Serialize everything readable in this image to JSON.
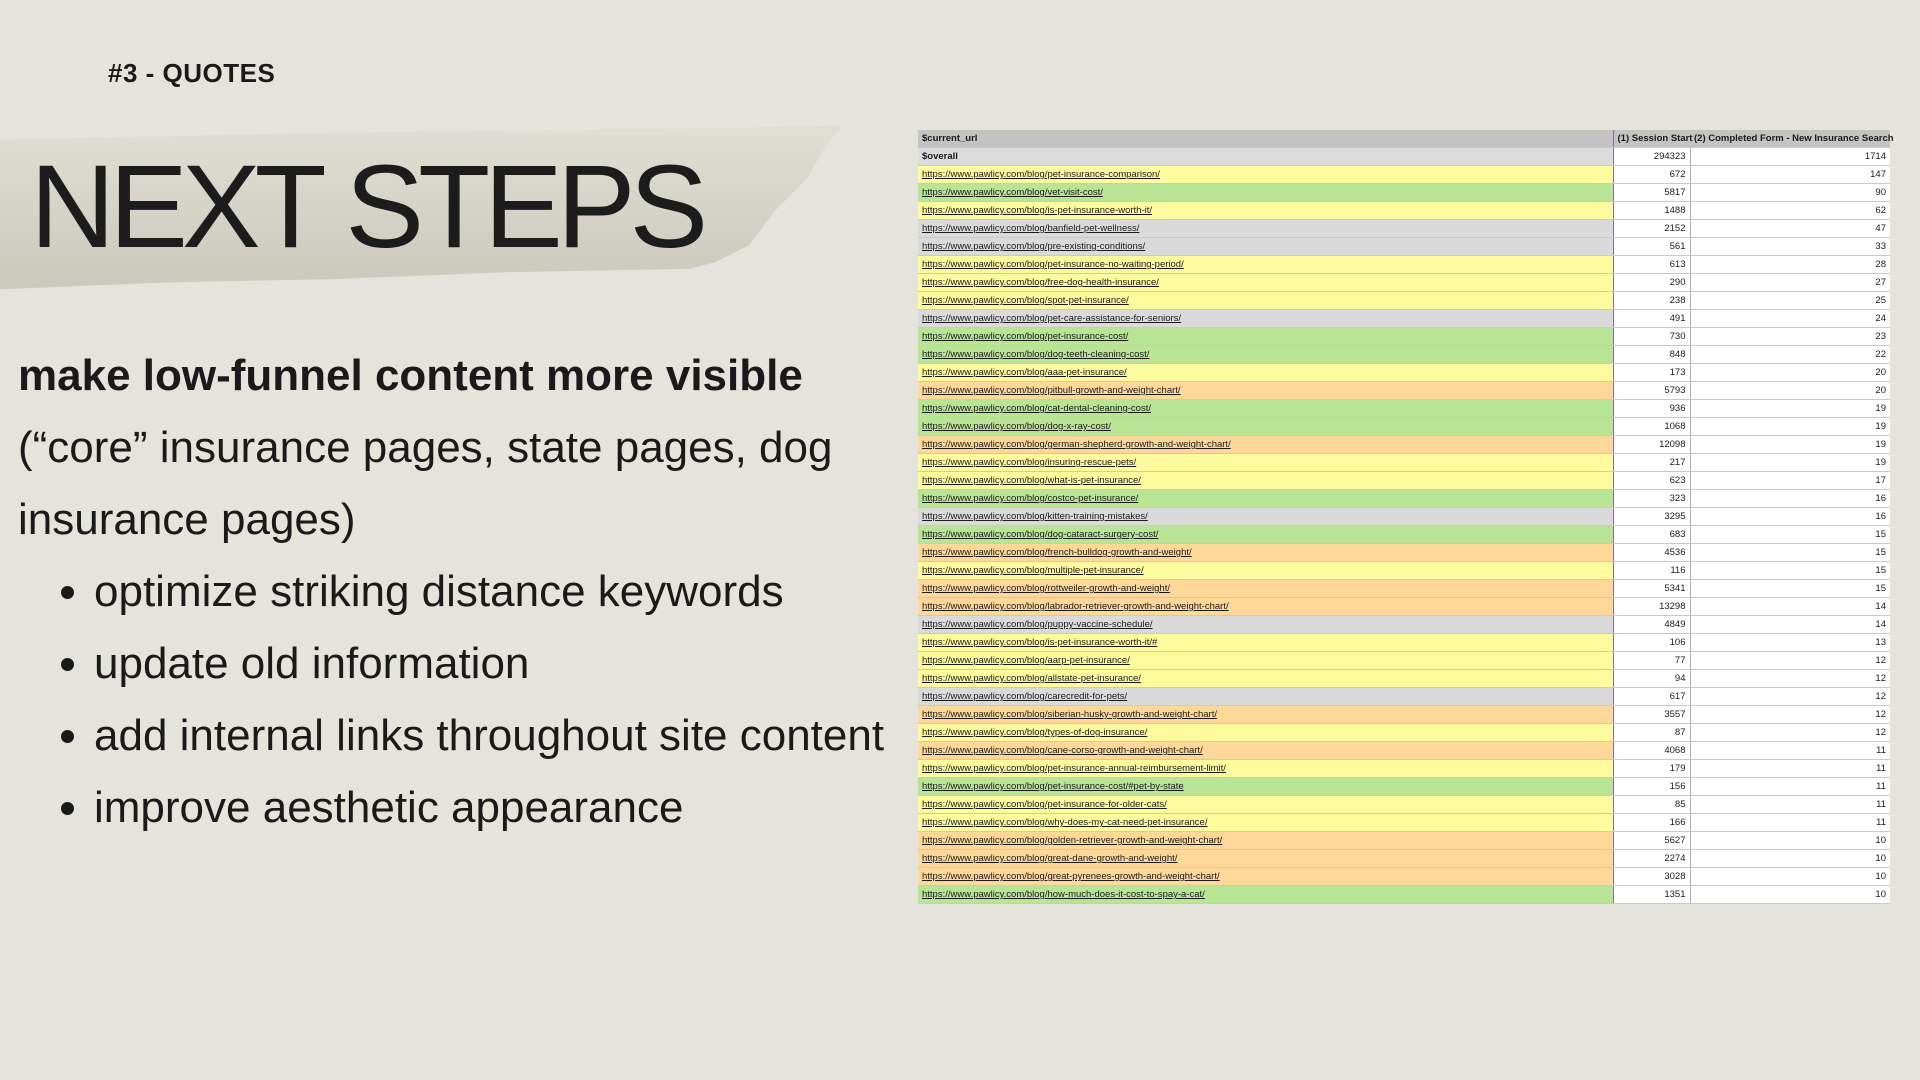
{
  "slide": {
    "kicker": "#3 - QUOTES",
    "title": "NEXT STEPS",
    "lead": "make low-funnel content more visible",
    "sub": "(“core” insurance pages, state pages, dog insurance pages)",
    "bullets": [
      "optimize striking distance keywords",
      "update old information",
      "add internal links throughout site content",
      "improve aesthetic appearance"
    ]
  },
  "colors": {
    "yellow": "#fdfb9e",
    "green": "#b8e496",
    "orange": "#fdd898",
    "gray": "#dadada",
    "overall": "#dcdcdc"
  },
  "table": {
    "headers": [
      "$current_url",
      "(1) Session Start",
      "(2) Completed Form - New Insurance Search"
    ],
    "overall": {
      "url": "$overall",
      "sessions": 294323,
      "completed": 1714
    },
    "rows": [
      {
        "url": "https://www.pawlicy.com/blog/pet-insurance-comparison/",
        "sessions": 672,
        "completed": 147,
        "color": "yellow"
      },
      {
        "url": "https://www.pawlicy.com/blog/vet-visit-cost/",
        "sessions": 5817,
        "completed": 90,
        "color": "green"
      },
      {
        "url": "https://www.pawlicy.com/blog/is-pet-insurance-worth-it/",
        "sessions": 1488,
        "completed": 62,
        "color": "yellow"
      },
      {
        "url": "https://www.pawlicy.com/blog/banfield-pet-wellness/",
        "sessions": 2152,
        "completed": 47,
        "color": "gray"
      },
      {
        "url": "https://www.pawlicy.com/blog/pre-existing-conditions/",
        "sessions": 561,
        "completed": 33,
        "color": "gray"
      },
      {
        "url": "https://www.pawlicy.com/blog/pet-insurance-no-waiting-period/",
        "sessions": 613,
        "completed": 28,
        "color": "yellow"
      },
      {
        "url": "https://www.pawlicy.com/blog/free-dog-health-insurance/",
        "sessions": 290,
        "completed": 27,
        "color": "yellow"
      },
      {
        "url": "https://www.pawlicy.com/blog/spot-pet-insurance/",
        "sessions": 238,
        "completed": 25,
        "color": "yellow"
      },
      {
        "url": "https://www.pawlicy.com/blog/pet-care-assistance-for-seniors/",
        "sessions": 491,
        "completed": 24,
        "color": "gray"
      },
      {
        "url": "https://www.pawlicy.com/blog/pet-insurance-cost/",
        "sessions": 730,
        "completed": 23,
        "color": "green"
      },
      {
        "url": "https://www.pawlicy.com/blog/dog-teeth-cleaning-cost/",
        "sessions": 848,
        "completed": 22,
        "color": "green"
      },
      {
        "url": "https://www.pawlicy.com/blog/aaa-pet-insurance/",
        "sessions": 173,
        "completed": 20,
        "color": "yellow"
      },
      {
        "url": "https://www.pawlicy.com/blog/pitbull-growth-and-weight-chart/",
        "sessions": 5793,
        "completed": 20,
        "color": "orange"
      },
      {
        "url": "https://www.pawlicy.com/blog/cat-dental-cleaning-cost/",
        "sessions": 936,
        "completed": 19,
        "color": "green"
      },
      {
        "url": "https://www.pawlicy.com/blog/dog-x-ray-cost/",
        "sessions": 1068,
        "completed": 19,
        "color": "green"
      },
      {
        "url": "https://www.pawlicy.com/blog/german-shepherd-growth-and-weight-chart/",
        "sessions": 12098,
        "completed": 19,
        "color": "orange"
      },
      {
        "url": "https://www.pawlicy.com/blog/insuring-rescue-pets/",
        "sessions": 217,
        "completed": 19,
        "color": "yellow"
      },
      {
        "url": "https://www.pawlicy.com/blog/what-is-pet-insurance/",
        "sessions": 623,
        "completed": 17,
        "color": "yellow"
      },
      {
        "url": "https://www.pawlicy.com/blog/costco-pet-insurance/",
        "sessions": 323,
        "completed": 16,
        "color": "green"
      },
      {
        "url": "https://www.pawlicy.com/blog/kitten-training-mistakes/",
        "sessions": 3295,
        "completed": 16,
        "color": "gray"
      },
      {
        "url": "https://www.pawlicy.com/blog/dog-cataract-surgery-cost/",
        "sessions": 683,
        "completed": 15,
        "color": "green"
      },
      {
        "url": "https://www.pawlicy.com/blog/french-bulldog-growth-and-weight/",
        "sessions": 4536,
        "completed": 15,
        "color": "orange"
      },
      {
        "url": "https://www.pawlicy.com/blog/multiple-pet-insurance/",
        "sessions": 116,
        "completed": 15,
        "color": "yellow"
      },
      {
        "url": "https://www.pawlicy.com/blog/rottweiler-growth-and-weight/",
        "sessions": 5341,
        "completed": 15,
        "color": "orange"
      },
      {
        "url": "https://www.pawlicy.com/blog/labrador-retriever-growth-and-weight-chart/",
        "sessions": 13298,
        "completed": 14,
        "color": "orange"
      },
      {
        "url": "https://www.pawlicy.com/blog/puppy-vaccine-schedule/",
        "sessions": 4849,
        "completed": 14,
        "color": "gray"
      },
      {
        "url": "https://www.pawlicy.com/blog/is-pet-insurance-worth-it/#",
        "sessions": 106,
        "completed": 13,
        "color": "yellow"
      },
      {
        "url": "https://www.pawlicy.com/blog/aarp-pet-insurance/",
        "sessions": 77,
        "completed": 12,
        "color": "yellow"
      },
      {
        "url": "https://www.pawlicy.com/blog/allstate-pet-insurance/",
        "sessions": 94,
        "completed": 12,
        "color": "yellow"
      },
      {
        "url": "https://www.pawlicy.com/blog/carecredit-for-pets/",
        "sessions": 617,
        "completed": 12,
        "color": "gray"
      },
      {
        "url": "https://www.pawlicy.com/blog/siberian-husky-growth-and-weight-chart/",
        "sessions": 3557,
        "completed": 12,
        "color": "orange"
      },
      {
        "url": "https://www.pawlicy.com/blog/types-of-dog-insurance/",
        "sessions": 87,
        "completed": 12,
        "color": "yellow"
      },
      {
        "url": "https://www.pawlicy.com/blog/cane-corso-growth-and-weight-chart/",
        "sessions": 4068,
        "completed": 11,
        "color": "orange"
      },
      {
        "url": "https://www.pawlicy.com/blog/pet-insurance-annual-reimbursement-limit/",
        "sessions": 179,
        "completed": 11,
        "color": "yellow"
      },
      {
        "url": "https://www.pawlicy.com/blog/pet-insurance-cost/#pet-by-state",
        "sessions": 156,
        "completed": 11,
        "color": "green"
      },
      {
        "url": "https://www.pawlicy.com/blog/pet-insurance-for-older-cats/",
        "sessions": 85,
        "completed": 11,
        "color": "yellow"
      },
      {
        "url": "https://www.pawlicy.com/blog/why-does-my-cat-need-pet-insurance/",
        "sessions": 166,
        "completed": 11,
        "color": "yellow"
      },
      {
        "url": "https://www.pawlicy.com/blog/golden-retriever-growth-and-weight-chart/",
        "sessions": 5627,
        "completed": 10,
        "color": "orange"
      },
      {
        "url": "https://www.pawlicy.com/blog/great-dane-growth-and-weight/",
        "sessions": 2274,
        "completed": 10,
        "color": "orange"
      },
      {
        "url": "https://www.pawlicy.com/blog/great-pyrenees-growth-and-weight-chart/",
        "sessions": 3028,
        "completed": 10,
        "color": "orange"
      },
      {
        "url": "https://www.pawlicy.com/blog/how-much-does-it-cost-to-spay-a-cat/",
        "sessions": 1351,
        "completed": 10,
        "color": "green"
      }
    ]
  }
}
